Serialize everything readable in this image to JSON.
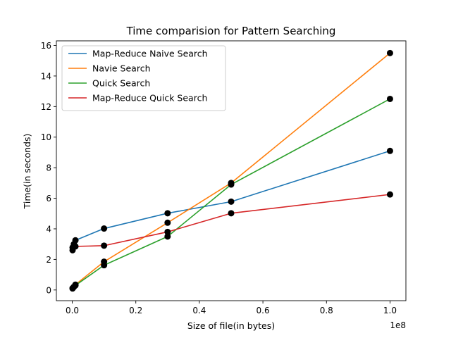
{
  "chart_data": {
    "type": "line",
    "title": "Time comparision for Pattern Searching",
    "xlabel": "Size of file(in bytes)",
    "ylabel": "Time(in seconds)",
    "x_offset_label": "1e8",
    "xlim": [
      -5000000,
      105000000
    ],
    "ylim": [
      -0.7,
      16.3
    ],
    "xticks": [
      0,
      20000000,
      40000000,
      60000000,
      80000000,
      100000000
    ],
    "xtick_labels": [
      "0.0",
      "0.2",
      "0.4",
      "0.6",
      "0.8",
      "1.0"
    ],
    "yticks": [
      0,
      2,
      4,
      6,
      8,
      10,
      12,
      14,
      16
    ],
    "ytick_labels": [
      "0",
      "2",
      "4",
      "6",
      "8",
      "10",
      "12",
      "14",
      "16"
    ],
    "grid": false,
    "legend_position": "upper-left",
    "marker_color": "#000000",
    "series": [
      {
        "name": "Map-Reduce Naive Search",
        "color": "#1f77b4",
        "x": [
          100000,
          500000,
          1000000,
          10000000,
          30000000,
          50000000,
          100000000
        ],
        "y": [
          2.6,
          3.0,
          3.25,
          4.02,
          5.02,
          5.78,
          9.1
        ]
      },
      {
        "name": "Navie Search",
        "color": "#ff7f0e",
        "x": [
          100000,
          500000,
          1000000,
          10000000,
          30000000,
          50000000,
          100000000
        ],
        "y": [
          0.12,
          0.2,
          0.35,
          1.85,
          4.4,
          7.0,
          15.5
        ]
      },
      {
        "name": "Quick Search",
        "color": "#2ca02c",
        "x": [
          100000,
          500000,
          1000000,
          10000000,
          30000000,
          50000000,
          100000000
        ],
        "y": [
          0.1,
          0.2,
          0.3,
          1.62,
          3.5,
          6.9,
          12.5
        ]
      },
      {
        "name": "Map-Reduce Quick Search",
        "color": "#d62728",
        "x": [
          100000,
          500000,
          1000000,
          10000000,
          30000000,
          50000000,
          100000000
        ],
        "y": [
          2.78,
          2.82,
          2.85,
          2.9,
          3.8,
          5.02,
          6.25
        ]
      }
    ]
  }
}
